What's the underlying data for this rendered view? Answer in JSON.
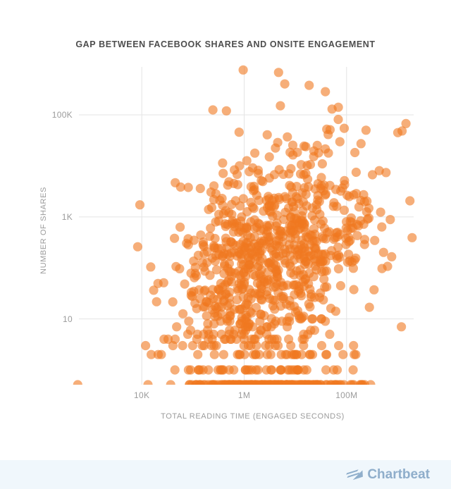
{
  "title": "GAP BETWEEN FACEBOOK SHARES AND ONSITE ENGAGEMENT",
  "chart_data": {
    "type": "scatter",
    "title": "GAP BETWEEN FACEBOOK SHARES AND ONSITE ENGAGEMENT",
    "xlabel": "TOTAL READING TIME (ENGAGED SECONDS)",
    "ylabel": "NUMBER OF SHARES",
    "x_scale": "log10",
    "y_scale": "log10",
    "x_domain_log10": [
      3.02,
      9.31
    ],
    "y_domain_log10": [
      -0.29,
      5.94
    ],
    "x_ticks": [
      {
        "label": "10K",
        "log10": 4
      },
      {
        "label": "1M",
        "log10": 6
      },
      {
        "label": "100M",
        "log10": 8
      }
    ],
    "y_ticks": [
      {
        "label": "100K",
        "log10": 5
      },
      {
        "label": "1K",
        "log10": 3
      },
      {
        "label": "10",
        "log10": 1
      }
    ],
    "grid": {
      "show": true,
      "color": "#e4e4e4"
    },
    "legend": {
      "show": false
    },
    "point_style": {
      "color": "#F07820",
      "opacity": 0.6,
      "radius": 6.6
    },
    "n_points_approx": 1080,
    "distribution": {
      "seed": 42,
      "cloud": {
        "count": 820,
        "mean_log10": [
          6.45,
          2.2
        ],
        "sd_log10": [
          1.0,
          1.05
        ],
        "corr": 0.35
      },
      "round_shares_below": 10,
      "integer_share_rows": [
        {
          "shares": 1,
          "count": 26
        },
        {
          "shares": 2,
          "count": 20
        },
        {
          "shares": 3,
          "count": 10
        },
        {
          "shares": 4,
          "count": 8
        },
        {
          "shares": 5,
          "count": 6
        }
      ],
      "rows_x_mean_log10": 6.7,
      "rows_x_sd_log10": 0.8,
      "zero_share_band": {
        "count": 160,
        "x_mean_log10": 6.6,
        "x_sd_log10": 0.85,
        "note": "articles with ~zero shares drawn clamped at plot bottom edge (clipped half-dots)"
      }
    },
    "notable_points": [
      {
        "reading_time": 955000,
        "shares": 760000
      },
      {
        "reading_time": 4700000,
        "shares": 680000
      },
      {
        "reading_time": 6200000,
        "shares": 405000
      },
      {
        "reading_time": 18600000,
        "shares": 380000
      },
      {
        "reading_time": 5100000,
        "shares": 151000
      },
      {
        "reading_time": 245000,
        "shares": 125000
      },
      {
        "reading_time": 450000,
        "shares": 120000
      },
      {
        "reading_time": 69000000,
        "shares": 141000
      },
      {
        "reading_time": 52000000,
        "shares": 130000
      },
      {
        "reading_time": 240000000,
        "shares": 50000
      },
      {
        "reading_time": 1000000000,
        "shares": 45000
      },
      {
        "reading_time": 590000000,
        "shares": 7400
      },
      {
        "reading_time": 560,
        "shares": 0
      },
      {
        "reading_time": 13200,
        "shares": 0
      }
    ]
  },
  "footer": {
    "brand": "Chartbeat",
    "brand_color": "#8FAECB",
    "background": "#F0F7FC",
    "logo_icon": "chartbeat-flag-icon"
  }
}
